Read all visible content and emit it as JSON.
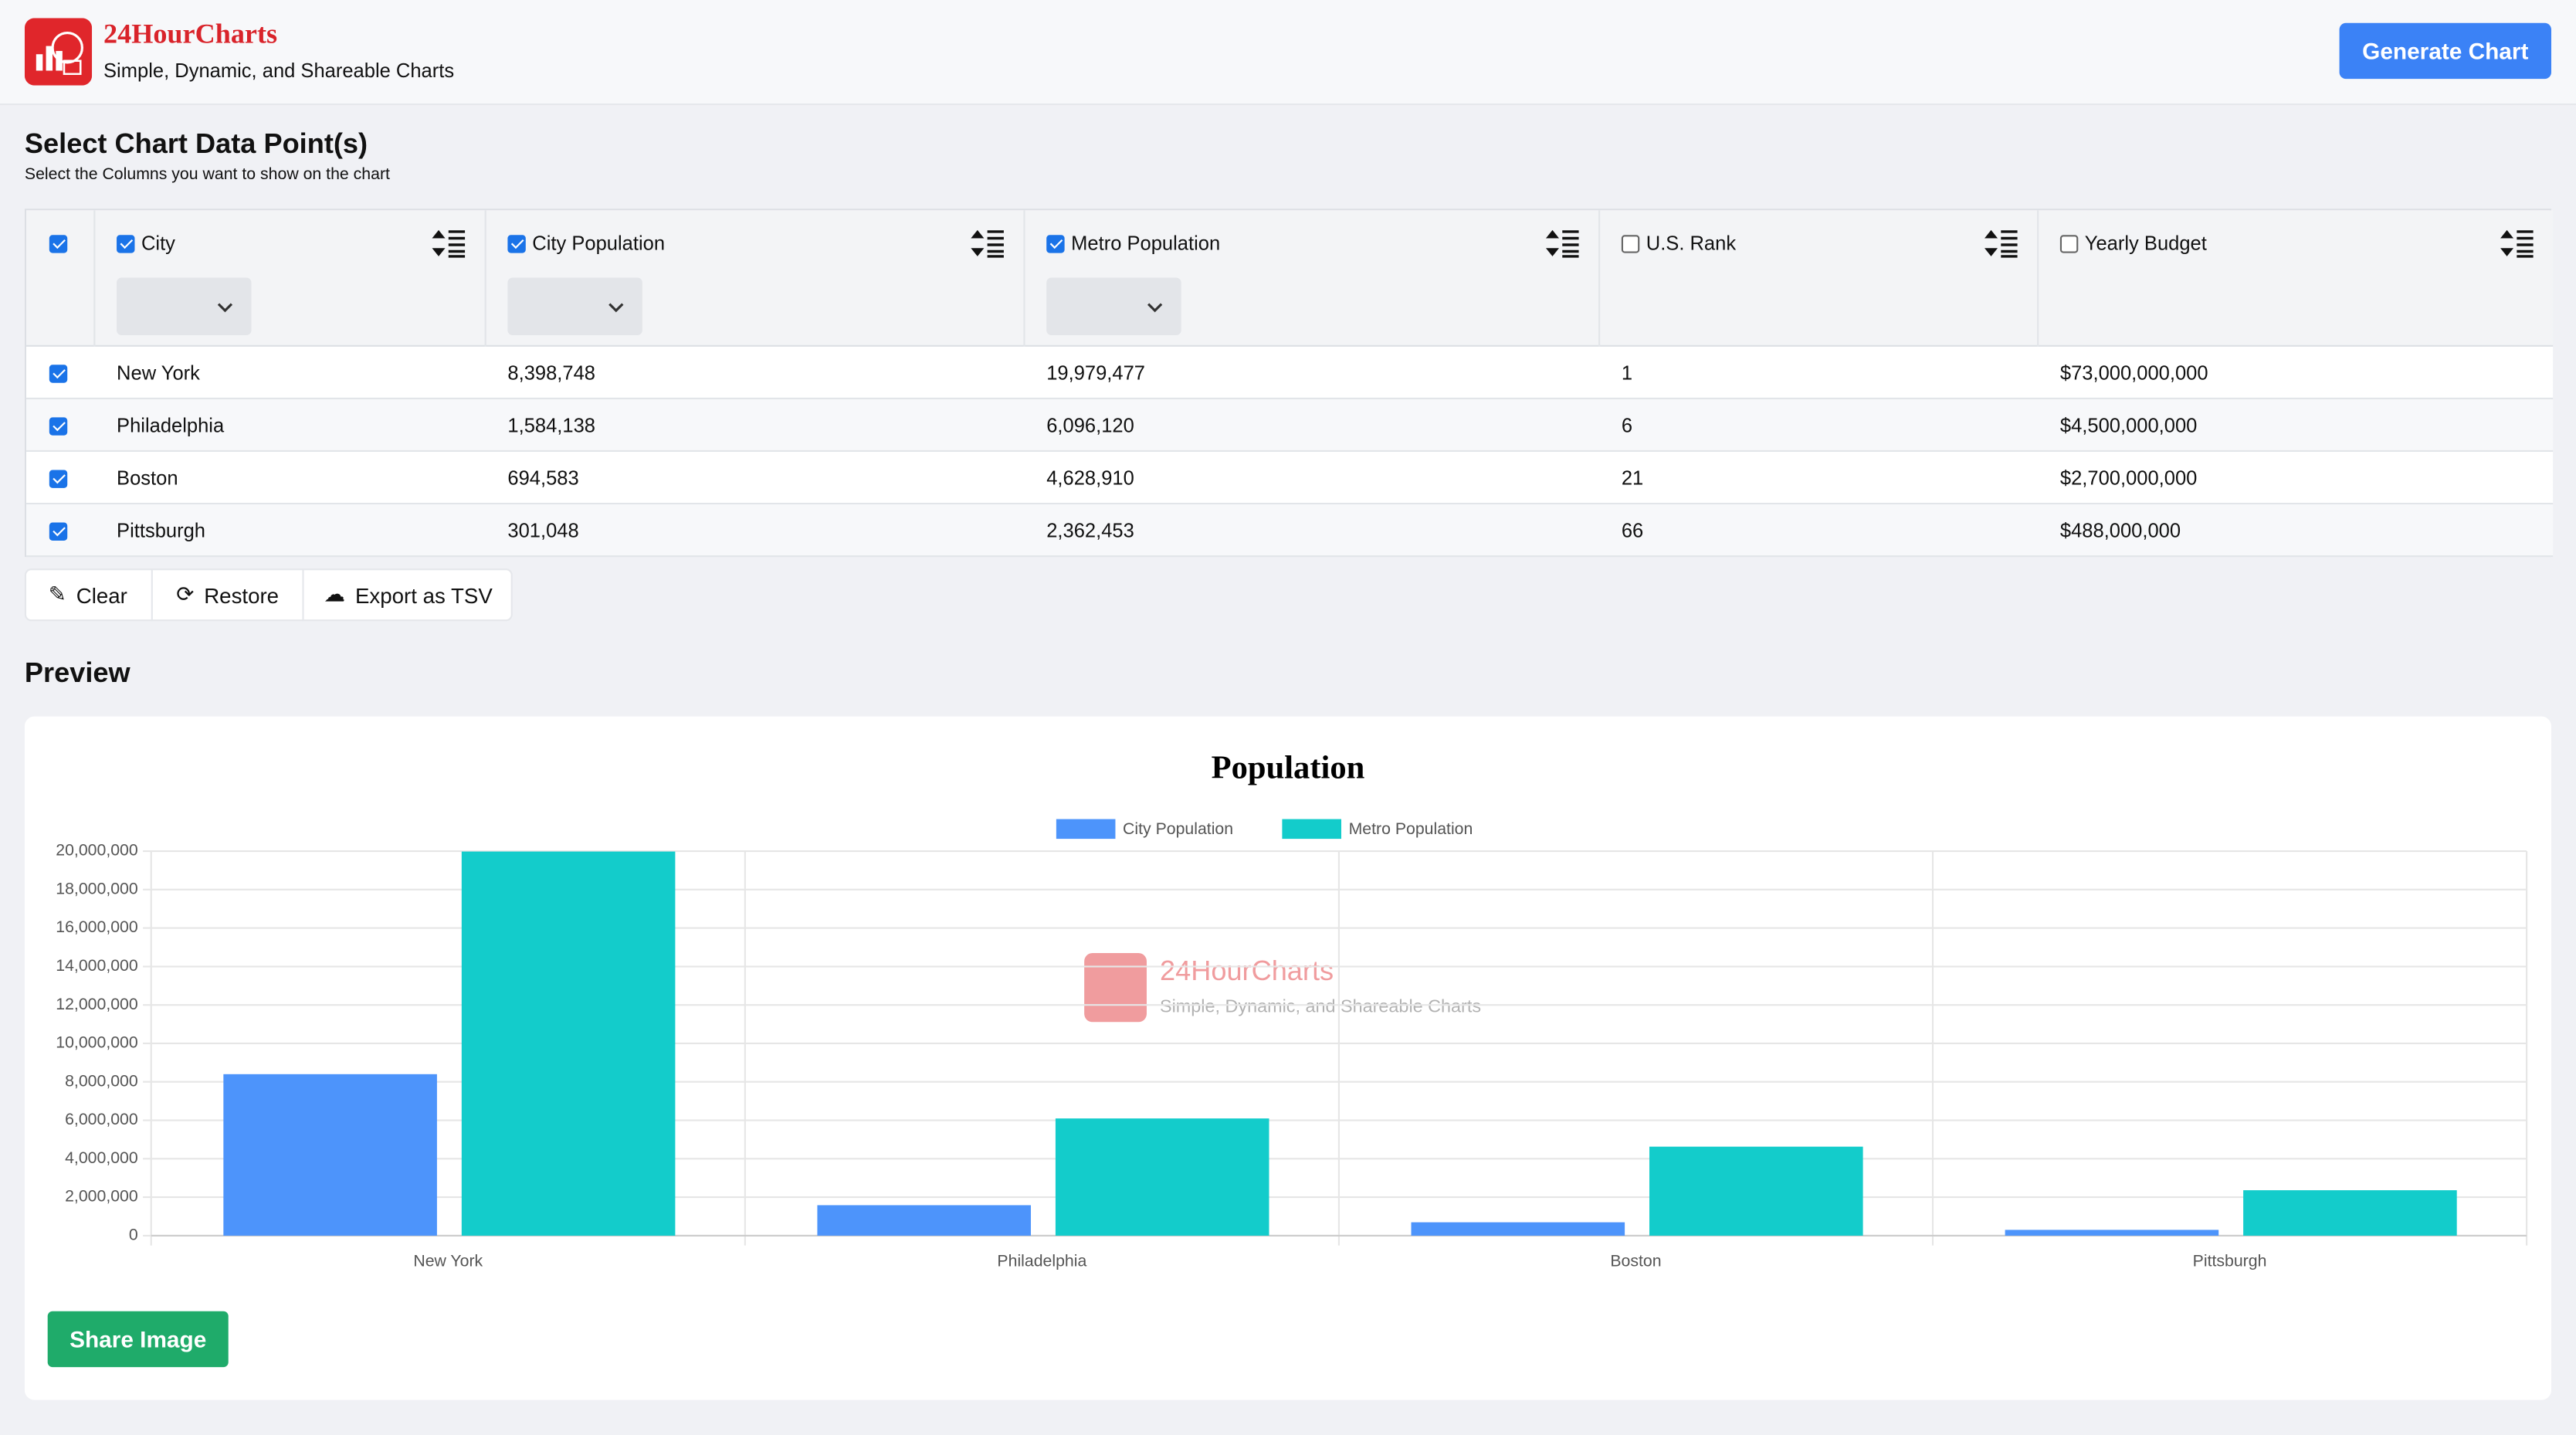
{
  "header": {
    "brand": "24HourCharts",
    "tagline": "Simple, Dynamic, and Shareable Charts",
    "generate_button": "Generate Chart"
  },
  "section": {
    "title": "Select Chart Data Point(s)",
    "subtitle": "Select the Columns you want to show on the chart"
  },
  "table": {
    "all_checked": true,
    "columns": [
      {
        "label": "City",
        "checked": true,
        "filter": true
      },
      {
        "label": "City Population",
        "checked": true,
        "filter": true
      },
      {
        "label": "Metro Population",
        "checked": true,
        "filter": true
      },
      {
        "label": "U.S. Rank",
        "checked": false,
        "filter": false
      },
      {
        "label": "Yearly Budget",
        "checked": false,
        "filter": false
      }
    ],
    "rows": [
      {
        "checked": true,
        "cells": [
          "New York",
          "8,398,748",
          "19,979,477",
          "1",
          "$73,000,000,000"
        ]
      },
      {
        "checked": true,
        "cells": [
          "Philadelphia",
          "1,584,138",
          "6,096,120",
          "6",
          "$4,500,000,000"
        ]
      },
      {
        "checked": true,
        "cells": [
          "Boston",
          "694,583",
          "4,628,910",
          "21",
          "$2,700,000,000"
        ]
      },
      {
        "checked": true,
        "cells": [
          "Pittsburgh",
          "301,048",
          "2,362,453",
          "66",
          "$488,000,000"
        ]
      }
    ]
  },
  "toolbar": {
    "clear": "Clear",
    "restore": "Restore",
    "export": "Export as TSV"
  },
  "preview": {
    "title": "Preview",
    "share_button": "Share Image",
    "watermark": {
      "brand": "24HourCharts",
      "tagline": "Simple, Dynamic, and Shareable Charts"
    }
  },
  "chart_data": {
    "type": "bar",
    "title": "Population",
    "categories": [
      "New York",
      "Philadelphia",
      "Boston",
      "Pittsburgh"
    ],
    "series": [
      {
        "name": "City Population",
        "color": "#4d94fb",
        "values": [
          8398748,
          1584138,
          694583,
          301048
        ]
      },
      {
        "name": "Metro Population",
        "color": "#13cccb",
        "values": [
          19979477,
          6096120,
          4628910,
          2362453
        ]
      }
    ],
    "ylim": [
      0,
      20000000
    ],
    "yticks": [
      0,
      {
        "value": 2000000,
        "label": "2,000,000"
      },
      {
        "value": 4000000,
        "label": "4,000,000"
      },
      {
        "value": 6000000,
        "label": "6,000,000"
      },
      {
        "value": 8000000,
        "label": "8,000,000"
      },
      {
        "value": 10000000,
        "label": "10,000,000"
      },
      {
        "value": 12000000,
        "label": "12,000,000"
      },
      {
        "value": 14000000,
        "label": "14,000,000"
      },
      {
        "value": 16000000,
        "label": "16,000,000"
      },
      {
        "value": 18000000,
        "label": "18,000,000"
      },
      {
        "value": 20000000,
        "label": "20,000,000"
      }
    ],
    "grid": true,
    "legend": "top"
  }
}
